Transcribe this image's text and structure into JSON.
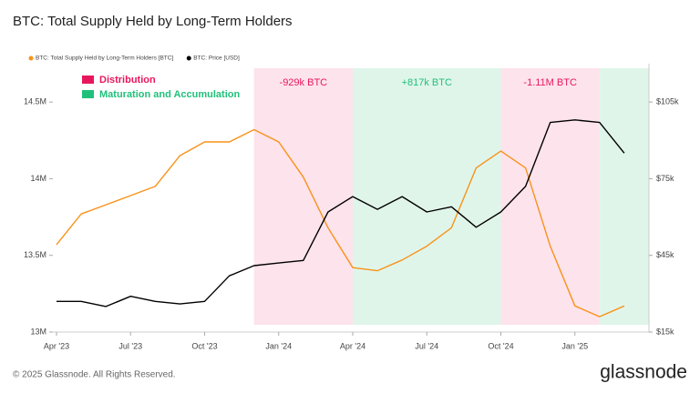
{
  "chart_data": {
    "type": "line",
    "title": "BTC: Total Supply Held by Long-Term Holders",
    "x": [
      "2023-04",
      "2023-05",
      "2023-06",
      "2023-07",
      "2023-08",
      "2023-09",
      "2023-10",
      "2023-11",
      "2023-12",
      "2024-01",
      "2024-02",
      "2024-03",
      "2024-04",
      "2024-05",
      "2024-06",
      "2024-07",
      "2024-08",
      "2024-09",
      "2024-10",
      "2024-11",
      "2024-12",
      "2025-01",
      "2025-02",
      "2025-03"
    ],
    "series": [
      {
        "name": "BTC: Total Supply Held by Long-Term Holders [BTC]",
        "color": "#f7931a",
        "axis": "y",
        "values": [
          13570000,
          13770000,
          13830000,
          13890000,
          13950000,
          14150000,
          14240000,
          14240000,
          14320000,
          14240000,
          14010000,
          13680000,
          13420000,
          13400000,
          13470000,
          13560000,
          13680000,
          14070000,
          14180000,
          14070000,
          13560000,
          13170000,
          13100000,
          13170000
        ]
      },
      {
        "name": "BTC: Price [USD]",
        "color": "#000000",
        "axis": "y2",
        "values": [
          27000,
          27000,
          25000,
          29000,
          27000,
          26000,
          27000,
          37000,
          41000,
          42000,
          43000,
          62000,
          68000,
          63000,
          68000,
          62000,
          64000,
          56000,
          62000,
          72000,
          97000,
          98000,
          97000,
          85000
        ]
      }
    ],
    "region_groups": [
      {
        "name": "Distribution",
        "color": "#e8175d",
        "fill": "#fde3ec",
        "spans": [
          {
            "start": "2023-12",
            "end": "2024-04",
            "label": "-929k BTC"
          },
          {
            "start": "2024-10",
            "end": "2025-02",
            "label": "-1.11M BTC"
          }
        ]
      },
      {
        "name": "Maturation and Accumulation",
        "color": "#21c07a",
        "fill": "#e0f5ea",
        "spans": [
          {
            "start": "2024-04",
            "end": "2024-10",
            "label": "+817k BTC"
          },
          {
            "start": "2025-02",
            "end": "2025-04"
          }
        ]
      }
    ],
    "xlim": [
      "2023-04",
      "2025-04"
    ],
    "xticks": [
      {
        "value": "2023-04",
        "label": "Apr '23"
      },
      {
        "value": "2023-07",
        "label": "Jul '23"
      },
      {
        "value": "2023-10",
        "label": "Oct '23"
      },
      {
        "value": "2024-01",
        "label": "Jan '24"
      },
      {
        "value": "2024-04",
        "label": "Apr '24"
      },
      {
        "value": "2024-07",
        "label": "Jul '24"
      },
      {
        "value": "2024-10",
        "label": "Oct '24"
      },
      {
        "value": "2025-01",
        "label": "Jan '25"
      }
    ],
    "ylim": [
      13000000,
      14750000
    ],
    "yticks": [
      {
        "value": 13000000,
        "label": "13M"
      },
      {
        "value": 13500000,
        "label": "13.5M"
      },
      {
        "value": 14000000,
        "label": "14M"
      },
      {
        "value": 14500000,
        "label": "14.5M"
      }
    ],
    "y2lim": [
      15000,
      120000
    ],
    "y2ticks": [
      {
        "value": 15000,
        "label": "$15k"
      },
      {
        "value": 45000,
        "label": "$45k"
      },
      {
        "value": 75000,
        "label": "$75k"
      },
      {
        "value": 105000,
        "label": "$105k"
      }
    ]
  },
  "footer": {
    "copyright": "© 2025 Glassnode. All Rights Reserved.",
    "brand": "glassnode"
  }
}
